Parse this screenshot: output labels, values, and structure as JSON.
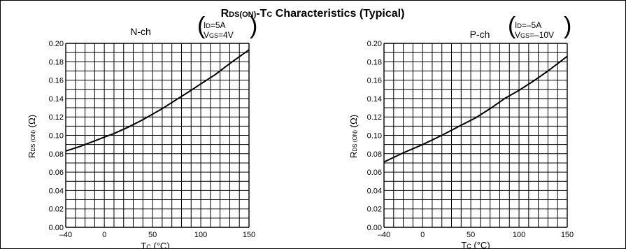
{
  "figure": {
    "title_main": "R",
    "title_sub": "DS(ON)",
    "title_dash": "-T",
    "title_sub2": "C",
    "title_rest": " Characteristics (Typical)"
  },
  "chart_data": [
    {
      "type": "line",
      "panel_label": "N-ch",
      "condition_1": {
        "main": "I",
        "sub": "D",
        "rest": "=5A"
      },
      "condition_2": {
        "main": "V",
        "sub": "GS",
        "rest": "=4V"
      },
      "xlabel": {
        "main": "T",
        "sub": "C",
        "rest": " (°C)"
      },
      "ylabel": {
        "main": "R",
        "sub": "DS (ON)",
        "rest": " (Ω)"
      },
      "xlim": [
        -40,
        150
      ],
      "ylim": [
        0,
        0.2
      ],
      "x_ticks": [
        "–40",
        "0",
        "50",
        "100",
        "150"
      ],
      "x_tick_values": [
        -40,
        0,
        50,
        100,
        150
      ],
      "y_ticks": [
        "0.00",
        "0.02",
        "0.04",
        "0.06",
        "0.08",
        "0.10",
        "0.12",
        "0.14",
        "0.16",
        "0.18",
        "0.20"
      ],
      "y_tick_values": [
        0,
        0.02,
        0.04,
        0.06,
        0.08,
        0.1,
        0.12,
        0.14,
        0.16,
        0.18,
        0.2
      ],
      "grid": true,
      "x": [
        -40,
        -25,
        -10,
        0,
        10,
        25,
        40,
        50,
        60,
        75,
        90,
        100,
        115,
        130,
        150
      ],
      "y": [
        0.083,
        0.088,
        0.094,
        0.098,
        0.102,
        0.109,
        0.117,
        0.123,
        0.129,
        0.139,
        0.149,
        0.156,
        0.166,
        0.178,
        0.193
      ]
    },
    {
      "type": "line",
      "panel_label": "P-ch",
      "condition_1": {
        "main": "I",
        "sub": "D",
        "rest": "=–5A"
      },
      "condition_2": {
        "main": "V",
        "sub": "GS",
        "rest": "=–10V"
      },
      "xlabel": {
        "main": "T",
        "sub": "C",
        "rest": " (°C)"
      },
      "ylabel": {
        "main": "R",
        "sub": "DS (ON)",
        "rest": " (Ω)"
      },
      "xlim": [
        -40,
        150
      ],
      "ylim": [
        0,
        0.2
      ],
      "x_ticks": [
        "–40",
        "0",
        "50",
        "100",
        "150"
      ],
      "x_tick_values": [
        -40,
        0,
        50,
        100,
        150
      ],
      "y_ticks": [
        "0.00",
        "0.02",
        "0.04",
        "0.06",
        "0.08",
        "0.10",
        "0.12",
        "0.14",
        "0.16",
        "0.18",
        "0.20"
      ],
      "y_tick_values": [
        0,
        0.02,
        0.04,
        0.06,
        0.08,
        0.1,
        0.12,
        0.14,
        0.16,
        0.18,
        0.2
      ],
      "grid": true,
      "x": [
        -40,
        -20,
        0,
        20,
        40,
        55,
        70,
        85,
        100,
        115,
        130,
        150
      ],
      "y": [
        0.071,
        0.081,
        0.09,
        0.1,
        0.111,
        0.119,
        0.129,
        0.14,
        0.149,
        0.159,
        0.17,
        0.186
      ]
    }
  ]
}
